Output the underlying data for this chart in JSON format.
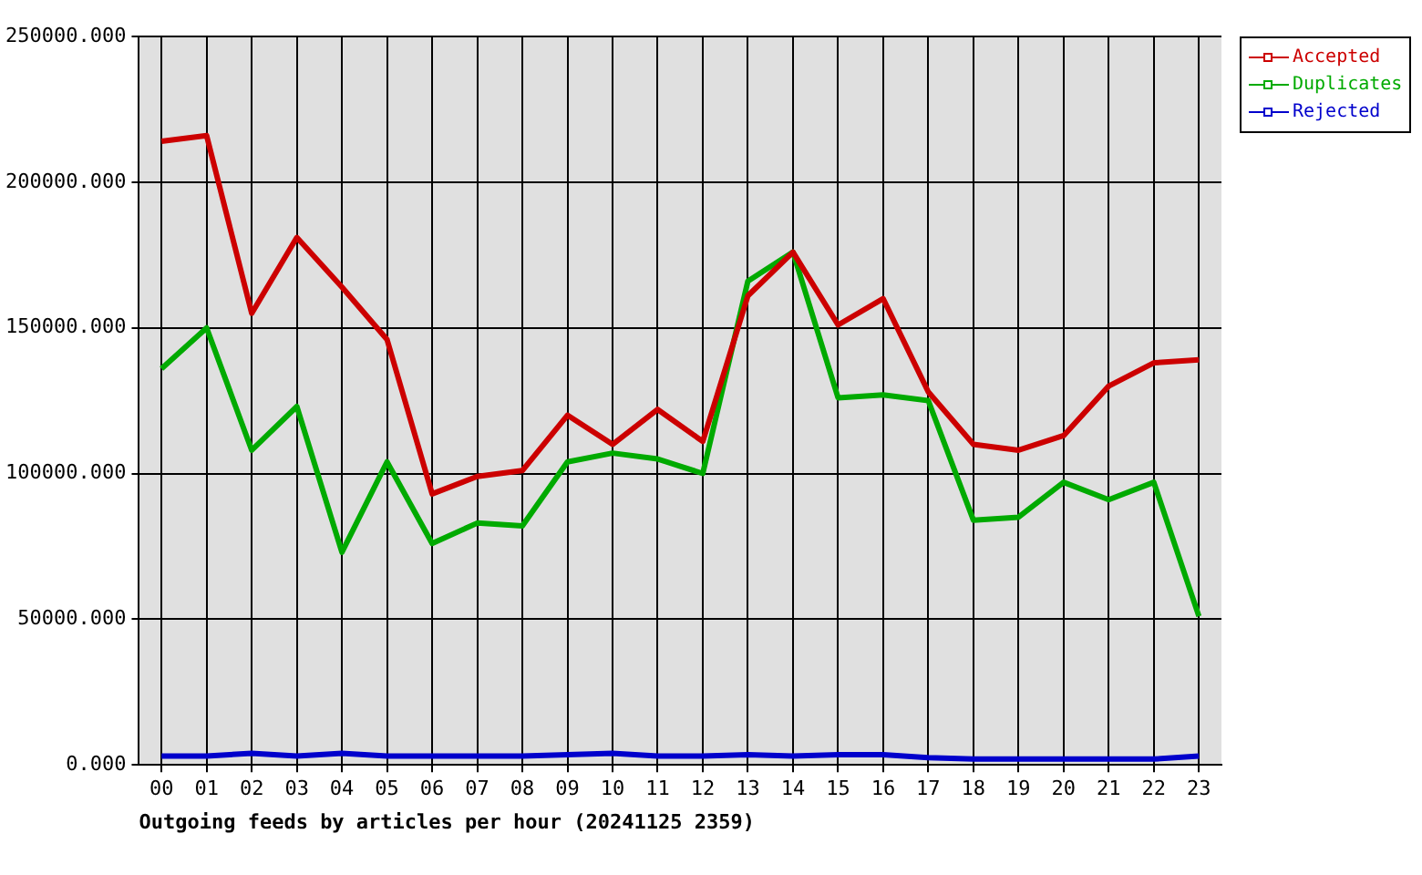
{
  "chart_data": {
    "type": "line",
    "xlabel": "Outgoing feeds by articles per hour (20241125 2359)",
    "categories": [
      "00",
      "01",
      "02",
      "03",
      "04",
      "05",
      "06",
      "07",
      "08",
      "09",
      "10",
      "11",
      "12",
      "13",
      "14",
      "15",
      "16",
      "17",
      "18",
      "19",
      "20",
      "21",
      "22",
      "23"
    ],
    "series": [
      {
        "name": "Accepted",
        "color": "#cc0000",
        "values": [
          214000,
          216000,
          155000,
          181000,
          164000,
          146000,
          93000,
          99000,
          101000,
          120000,
          110000,
          122000,
          111000,
          161000,
          176000,
          151000,
          160000,
          128000,
          110000,
          108000,
          113000,
          130000,
          138000,
          139000
        ]
      },
      {
        "name": "Duplicates",
        "color": "#00aa00",
        "values": [
          136000,
          150000,
          108000,
          123000,
          73000,
          104000,
          76000,
          83000,
          82000,
          104000,
          107000,
          105000,
          100000,
          166000,
          176000,
          126000,
          127000,
          125000,
          84000,
          85000,
          97000,
          91000,
          97000,
          51000
        ]
      },
      {
        "name": "Rejected",
        "color": "#0000cc",
        "values": [
          3000,
          3000,
          4000,
          3000,
          4000,
          3000,
          3000,
          3000,
          3000,
          3500,
          4000,
          3000,
          3000,
          3500,
          3000,
          3500,
          3500,
          2500,
          2000,
          2000,
          2000,
          2000,
          2000,
          3000
        ]
      }
    ],
    "ylim": [
      0,
      250000
    ],
    "yticks": [
      {
        "value": 0,
        "label": "0.000"
      },
      {
        "value": 50000,
        "label": "50000.000"
      },
      {
        "value": 100000,
        "label": "100000.000"
      },
      {
        "value": 150000,
        "label": "150000.000"
      },
      {
        "value": 200000,
        "label": "200000.000"
      },
      {
        "value": 250000,
        "label": "250000.000"
      }
    ],
    "grid": true,
    "legend": "top right",
    "marker": "none",
    "line_style": "solid"
  }
}
